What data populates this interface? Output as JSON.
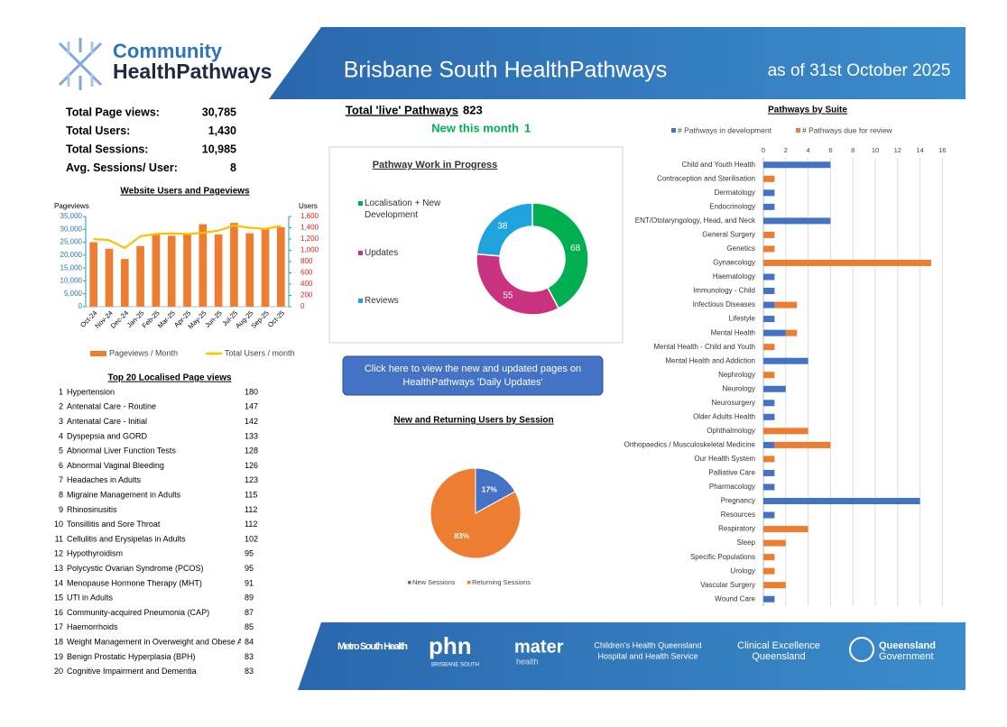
{
  "header": {
    "logo_top": "Community",
    "logo_bottom": "HealthPathways",
    "title": "Brisbane South HealthPathways",
    "date": "as of 31st October 2025"
  },
  "stats": [
    {
      "label": "Total Page views:",
      "value": "30,785"
    },
    {
      "label": "Total Users:",
      "value": "1,430"
    },
    {
      "label": "Total Sessions:",
      "value": "10,985"
    },
    {
      "label": "Avg. Sessions/ User:",
      "value": "8"
    }
  ],
  "pathways": {
    "live_label": "Total 'live' Pathways",
    "live_value": "823",
    "new_label": "New this month",
    "new_value": "1"
  },
  "button": "Click here to view the new and updated pages on HealthPathways 'Daily Updates'",
  "top_pages": {
    "title": "Top 20 Localised Page views",
    "rows": [
      {
        "rank": 1,
        "page": "Hypertension",
        "views": 180
      },
      {
        "rank": 2,
        "page": "Antenatal Care - Routine",
        "views": 147
      },
      {
        "rank": 3,
        "page": "Antenatal Care - Initial",
        "views": 142
      },
      {
        "rank": 4,
        "page": "Dyspepsia and GORD",
        "views": 133
      },
      {
        "rank": 5,
        "page": "Abnormal Liver Function Tests",
        "views": 128
      },
      {
        "rank": 6,
        "page": "Abnormal Vaginal Bleeding",
        "views": 126
      },
      {
        "rank": 7,
        "page": "Headaches in Adults",
        "views": 123
      },
      {
        "rank": 8,
        "page": "Migraine Management in Adults",
        "views": 115
      },
      {
        "rank": 9,
        "page": "Rhinosinusitis",
        "views": 112
      },
      {
        "rank": 10,
        "page": "Tonsillitis and Sore Throat",
        "views": 112
      },
      {
        "rank": 11,
        "page": "Cellulitis and Erysipelas in Adults",
        "views": 102
      },
      {
        "rank": 12,
        "page": "Hypothyroidism",
        "views": 95
      },
      {
        "rank": 13,
        "page": "Polycystic Ovarian Syndrome (PCOS)",
        "views": 95
      },
      {
        "rank": 14,
        "page": "Menopause Hormone Therapy (MHT)",
        "views": 91
      },
      {
        "rank": 15,
        "page": "UTI in Adults",
        "views": 89
      },
      {
        "rank": 16,
        "page": "Community-acquired Pneumonia (CAP)",
        "views": 87
      },
      {
        "rank": 17,
        "page": "Haemorrhoids",
        "views": 85
      },
      {
        "rank": 18,
        "page": "Weight Management in Overweight and Obese Adults",
        "views": 84
      },
      {
        "rank": 19,
        "page": "Benign Prostatic Hyperplasia (BPH)",
        "views": 83
      },
      {
        "rank": 20,
        "page": "Cognitive Impairment and Dementia",
        "views": 83
      }
    ]
  },
  "footer": {
    "metro": "Metro South Health",
    "phn": "phn",
    "phn_sub": "BRISBANE SOUTH",
    "mater": "mater",
    "mater_sub": "health",
    "chq1": "Children's Health Queensland",
    "chq2": "Hospital and Health Service",
    "ceq1": "Clinical Excellence",
    "ceq2": "Queensland",
    "qg1": "Queensland",
    "qg2": "Government"
  },
  "chart_data": [
    {
      "type": "bar",
      "title": "Website Users and Pageviews",
      "y_label": "Pageviews",
      "y2_label": "Users",
      "categories": [
        "Oct-24",
        "Nov-24",
        "Dec-24",
        "Jan-25",
        "Feb-25",
        "Mar-25",
        "Apr-25",
        "May-25",
        "Jun-25",
        "Jul-25",
        "Aug-25",
        "Sep-25",
        "Oct-25"
      ],
      "series": [
        {
          "name": "Pageviews / Month",
          "color": "#ed7d31",
          "values": [
            25000,
            22500,
            18500,
            23500,
            28000,
            27500,
            28000,
            32000,
            28000,
            32500,
            28500,
            30500,
            30785
          ]
        },
        {
          "name": "Total Users / month",
          "color": "#ffc000",
          "type": "line",
          "axis": "y2",
          "values": [
            1200,
            1180,
            1040,
            1250,
            1290,
            1300,
            1290,
            1310,
            1350,
            1440,
            1400,
            1380,
            1430
          ]
        }
      ],
      "ylim": [
        0,
        35000
      ],
      "yticks": [
        0,
        {
          "value": 5000,
          "label": "5,000"
        },
        {
          "value": 10000,
          "label": "10,000"
        },
        {
          "value": 15000,
          "label": "15,000"
        },
        {
          "value": 20000,
          "label": "20,000"
        },
        {
          "value": 25000,
          "label": "25,000"
        },
        {
          "value": 30000,
          "label": "30,000"
        },
        {
          "value": 35000,
          "label": "35,000"
        }
      ],
      "y2lim": [
        0,
        1600
      ],
      "y2ticks": [
        0,
        200,
        400,
        600,
        800,
        {
          "value": 1000,
          "label": "1,000"
        },
        {
          "value": 1200,
          "label": "1,200"
        },
        {
          "value": 1400,
          "label": "1,400"
        },
        {
          "value": 1600,
          "label": "1,600"
        }
      ],
      "grid": false
    },
    {
      "type": "donut",
      "title": "Pathway Work in Progress",
      "categories": [
        "Localisation + New Development",
        "Updates",
        "Reviews"
      ],
      "values": [
        68,
        55,
        38
      ],
      "colors": [
        "#00b050",
        "#c8327f",
        "#1fa3dc"
      ]
    },
    {
      "type": "pie",
      "title": "New and Returning Users by Session",
      "categories": [
        "New Sessions",
        "Returning Sessions"
      ],
      "values": [
        17,
        83
      ],
      "value_labels": [
        "17%",
        "83%"
      ],
      "colors": [
        "#4472c4",
        "#ed7d31"
      ]
    },
    {
      "type": "bar",
      "orientation": "horizontal",
      "stacked": true,
      "title": "Pathways by Suite",
      "categories": [
        "Child and Youth Health",
        "Contraception and Sterilisation",
        "Dermatology",
        "Endocrinology",
        "ENT/Otolaryngology, Head, and Neck",
        "General Surgery",
        "Genetics",
        "Gynaecology",
        "Haematology",
        "Immunology - Child",
        "Infectious Diseases",
        "Lifestyle",
        "Mental Health",
        "Mental Health - Child and Youth",
        "Mental Health and Addiction",
        "Nephrology",
        "Neurology",
        "Neurosurgery",
        "Older Adults Health",
        "Ophthalmology",
        "Orthopaedics / Musculoskeletal Medicine",
        "Our Health System",
        "Palliative Care",
        "Pharmacology",
        "Pregnancy",
        "Resources",
        "Respiratory",
        "Sleep",
        "Specific Populations",
        "Urology",
        "Vascular Surgery",
        "Wound Care"
      ],
      "series": [
        {
          "name": "# Pathways in development",
          "color": "#4472c4",
          "values": [
            6,
            0,
            1,
            1,
            6,
            0,
            0,
            0,
            1,
            1,
            1,
            1,
            2,
            0,
            4,
            0,
            2,
            1,
            1,
            0,
            1,
            0,
            1,
            1,
            14,
            1,
            0,
            0,
            0,
            0,
            0,
            1
          ]
        },
        {
          "name": "# Pathways due for review",
          "color": "#ed7d31",
          "values": [
            0,
            1,
            0,
            0,
            0,
            1,
            1,
            15,
            0,
            0,
            2,
            0,
            1,
            1,
            0,
            1,
            0,
            0,
            0,
            4,
            5,
            1,
            0,
            0,
            0,
            0,
            4,
            2,
            1,
            1,
            2,
            0
          ]
        }
      ],
      "xlim": [
        0,
        16
      ],
      "xticks": [
        0,
        2,
        4,
        6,
        8,
        10,
        12,
        14,
        16
      ],
      "grid": true
    }
  ]
}
